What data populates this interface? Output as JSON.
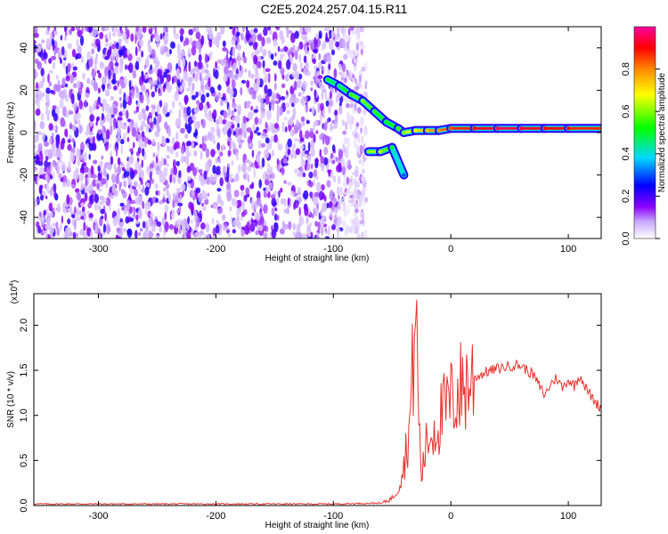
{
  "title": "C2E5.2024.257.04.15.R11",
  "chart_data": [
    {
      "type": "heatmap",
      "xlabel": "Height of straight line (km)",
      "ylabel": "Frequency (Hz)",
      "xlim": [
        -355,
        128
      ],
      "ylim": [
        -50,
        50
      ],
      "xticks": [
        "-300",
        "-200",
        "-100",
        "0",
        "100"
      ],
      "yticks": [
        "-40",
        "-20",
        "0",
        "20",
        "40"
      ],
      "colorbar": {
        "label": "Normalized spectral amplitude",
        "range": [
          0.0,
          1.0
        ],
        "ticks": [
          "0.0",
          "0.2",
          "0.4",
          "0.6",
          "0.8"
        ],
        "colors": [
          "#ffffff",
          "#8a00ff",
          "#0000ff",
          "#00d8ff",
          "#00ff00",
          "#ffff00",
          "#ff8800",
          "#ff0000",
          "#ff00a0"
        ]
      },
      "noise_region_x": [
        -355,
        -72
      ],
      "signal_track": [
        {
          "x": -105,
          "y": 25,
          "amp": 0.5
        },
        {
          "x": -95,
          "y": 22,
          "amp": 0.45
        },
        {
          "x": -85,
          "y": 18,
          "amp": 0.55
        },
        {
          "x": -75,
          "y": 15,
          "amp": 0.6
        },
        {
          "x": -65,
          "y": 10,
          "amp": 0.55
        },
        {
          "x": -55,
          "y": 5,
          "amp": 0.5
        },
        {
          "x": -45,
          "y": 2,
          "amp": 0.55
        },
        {
          "x": -40,
          "y": 0,
          "amp": 0.6
        },
        {
          "x": -30,
          "y": 1,
          "amp": 0.7
        },
        {
          "x": -20,
          "y": 1,
          "amp": 0.75
        },
        {
          "x": -10,
          "y": 1,
          "amp": 0.8
        },
        {
          "x": 0,
          "y": 2,
          "amp": 0.85
        },
        {
          "x": 20,
          "y": 2,
          "amp": 0.9
        },
        {
          "x": 40,
          "y": 2,
          "amp": 0.95
        },
        {
          "x": 60,
          "y": 2,
          "amp": 0.95
        },
        {
          "x": 80,
          "y": 2,
          "amp": 0.9
        },
        {
          "x": 100,
          "y": 2,
          "amp": 0.9
        },
        {
          "x": 128,
          "y": 2,
          "amp": 0.85
        }
      ],
      "side_branch": [
        {
          "x": -70,
          "y": -9,
          "amp": 0.6
        },
        {
          "x": -60,
          "y": -9,
          "amp": 0.65
        },
        {
          "x": -50,
          "y": -7,
          "amp": 0.5
        },
        {
          "x": -40,
          "y": -20,
          "amp": 0.3
        }
      ]
    },
    {
      "type": "line",
      "xlabel": "Height of straight line (km)",
      "ylabel": "SNR (10 * v/v)",
      "yscale_label": "(x10",
      "yscale_exp": "4",
      "xlim": [
        -355,
        128
      ],
      "ylim": [
        0,
        2.35
      ],
      "xticks": [
        "-300",
        "-200",
        "-100",
        "0",
        "100"
      ],
      "yticks": [
        "0.0",
        "0.5",
        "1.0",
        "1.5",
        "2.0"
      ],
      "color": "#e8302a",
      "series": [
        {
          "x": [
            -355,
            -300,
            -200,
            -100,
            -60,
            -50,
            -45,
            -40,
            -35,
            -32,
            -30,
            -28,
            -25,
            -22,
            -20,
            -15,
            -10,
            -5,
            0,
            5,
            10,
            15,
            20,
            30,
            40,
            50,
            55,
            60,
            70,
            80,
            85,
            90,
            95,
            100,
            105,
            110,
            115,
            120,
            125,
            128
          ],
          "y": [
            0.01,
            0.01,
            0.01,
            0.01,
            0.02,
            0.08,
            0.2,
            0.45,
            0.9,
            1.6,
            2.35,
            1.2,
            0.3,
            0.6,
            0.7,
            0.85,
            0.95,
            1.05,
            1.15,
            1.25,
            1.32,
            1.38,
            1.42,
            1.48,
            1.52,
            1.55,
            1.56,
            1.55,
            1.45,
            1.22,
            1.35,
            1.42,
            1.3,
            1.4,
            1.33,
            1.45,
            1.3,
            1.2,
            1.12,
            1.08
          ]
        }
      ]
    }
  ]
}
